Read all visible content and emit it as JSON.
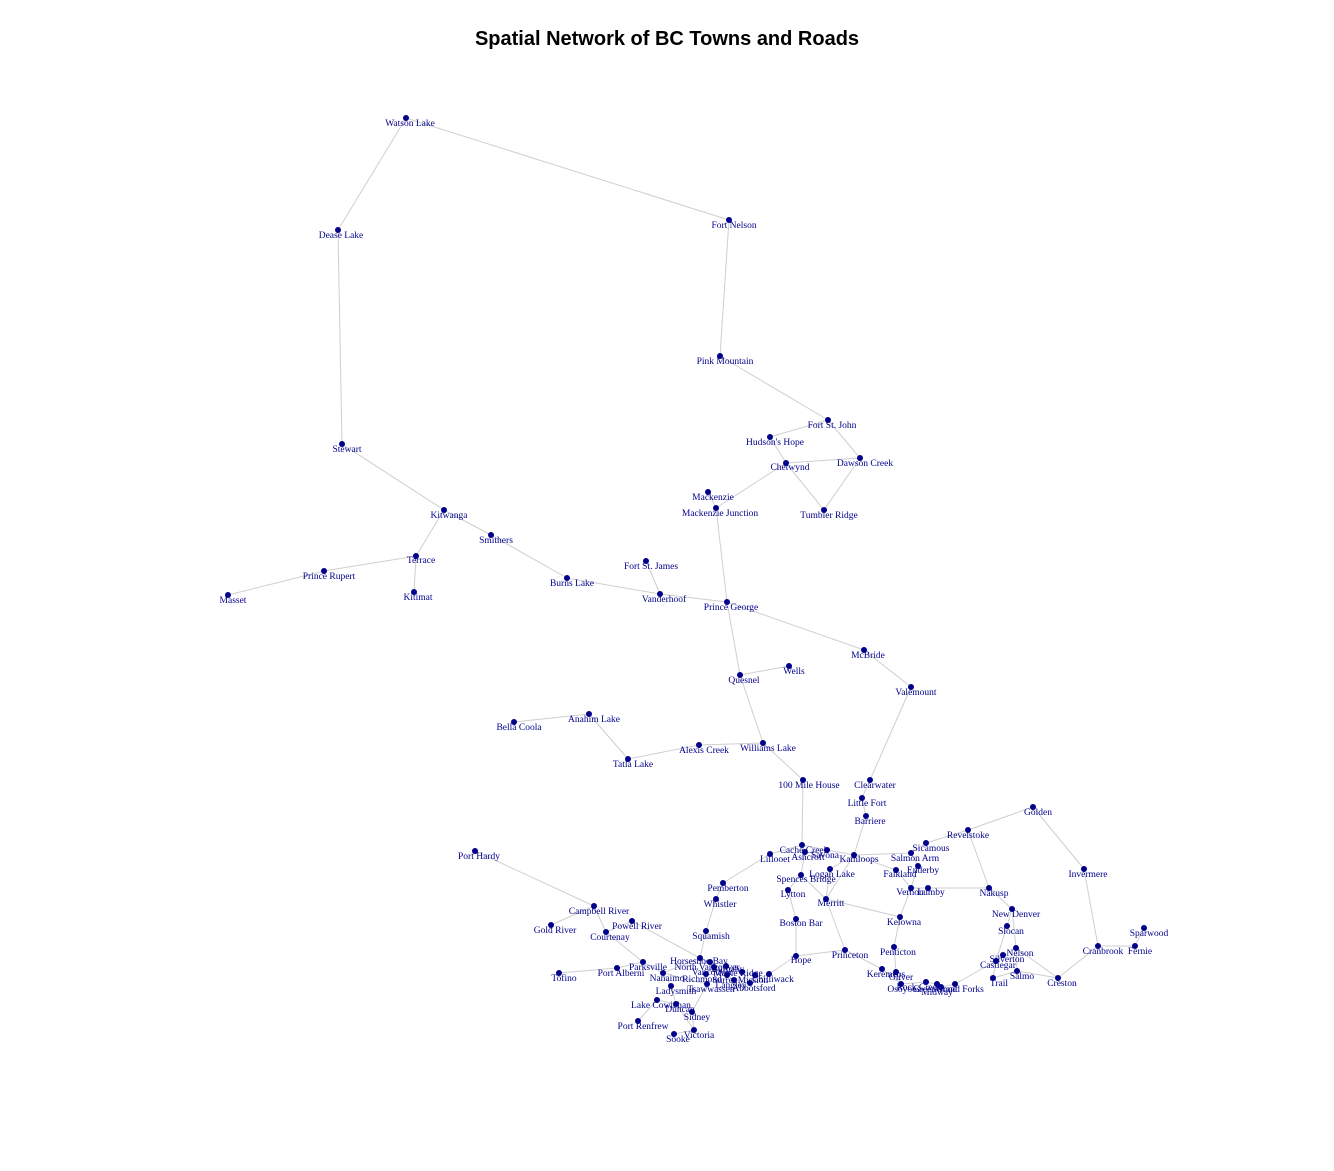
{
  "title": "Spatial Network of BC Towns and Roads",
  "node_color": "#00008b",
  "edge_color": "#cfcfcf",
  "towns": [
    "Watson Lake",
    "Fort Nelson",
    "Dease Lake",
    "Pink Mountain",
    "Fort St. John",
    "Hudson's Hope",
    "Chetwynd",
    "Dawson Creek",
    "Mackenzie",
    "Mackenzie Junction",
    "Tumbler Ridge",
    "Stewart",
    "Kitwanga",
    "Smithers",
    "Terrace",
    "Prince Rupert",
    "Masset",
    "Kitimat",
    "Fort St. James",
    "Burns Lake",
    "Vanderhoof",
    "Prince George",
    "McBride",
    "Wells",
    "Quesnel",
    "Valemount",
    "Anahim Lake",
    "Bella Coola",
    "Tatla Lake",
    "Alexis Creek",
    "Williams Lake",
    "100 Mile House",
    "Clearwater",
    "Little Fort",
    "Barriere",
    "Golden",
    "Revelstoke",
    "Sicamous",
    "Cache Creek",
    "Savona",
    "Ashcroft",
    "Lillooet",
    "Kamloops",
    "Salmon Arm",
    "Enderby",
    "Logan Lake",
    "Falkland",
    "Spences Bridge",
    "Invermere",
    "Pemberton",
    "Lytton",
    "Vernon",
    "Lumby",
    "Nakusp",
    "Merritt",
    "Whistler",
    "New Denver",
    "Kelowna",
    "Boston Bar",
    "Slocan",
    "Squamish",
    "Sparwood",
    "Penticton",
    "Princeton",
    "Hope",
    "Nelson",
    "Cranbrook",
    "Fernie",
    "Silverton",
    "Castlegar",
    "Salmo",
    "Trail",
    "Creston",
    "Keremeos",
    "Oliver",
    "Osoyoos",
    "Rock Creek",
    "Greenwood",
    "Midway",
    "Grand Forks",
    "Port Hardy",
    "Campbell River",
    "Gold River",
    "Powell River",
    "Courtenay",
    "Parksville",
    "Port Alberni",
    "Tofino",
    "Nanaimo",
    "Ladysmith",
    "Horseshoe Bay",
    "North Vancouver",
    "Vancouver",
    "Richmond",
    "Burnaby",
    "Surrey",
    "Maple Ridge",
    "Mission",
    "Tsawwassen",
    "Langley",
    "Abbotsford",
    "Chilliwack",
    "Lake Cowichan",
    "Duncan",
    "Sidney",
    "Port Renfrew",
    "Sooke",
    "Victoria"
  ]
}
